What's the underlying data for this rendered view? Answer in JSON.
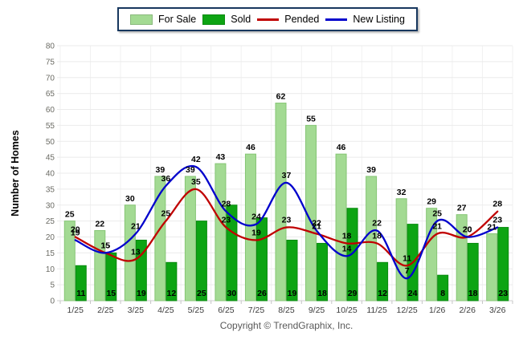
{
  "legend": {
    "items": [
      {
        "label": "For Sale",
        "type": "bar",
        "color": "#A3DA93"
      },
      {
        "label": "Sold",
        "type": "bar",
        "color": "#0DA413"
      },
      {
        "label": "Pended",
        "type": "line",
        "color": "#C00000"
      },
      {
        "label": "New Listing",
        "type": "line",
        "color": "#0000CC"
      }
    ]
  },
  "axes": {
    "y_title": "Number of Homes"
  },
  "footer": {
    "copyright": "Copyright © TrendGraphix, Inc."
  },
  "chart_data": {
    "type": "bar+line combo",
    "title": "",
    "xlabel": "",
    "ylabel": "Number of Homes",
    "ylim": [
      0,
      80
    ],
    "y_step": 5,
    "grid": true,
    "legend_position": "top",
    "categories": [
      "1/25",
      "2/25",
      "3/25",
      "4/25",
      "5/25",
      "6/25",
      "7/25",
      "8/25",
      "9/25",
      "10/25",
      "11/25",
      "12/25",
      "1/26",
      "2/26",
      "3/26"
    ],
    "series": [
      {
        "name": "For Sale",
        "type": "bar",
        "color": "#A3DA93",
        "border": "#85C574",
        "values": [
          25,
          22,
          30,
          39,
          39,
          43,
          46,
          62,
          55,
          46,
          39,
          32,
          29,
          27,
          21
        ]
      },
      {
        "name": "Sold",
        "type": "bar",
        "color": "#0DA413",
        "border": "#0A8A10",
        "values": [
          11,
          15,
          19,
          12,
          25,
          30,
          26,
          19,
          18,
          29,
          12,
          24,
          8,
          18,
          23
        ]
      },
      {
        "name": "Pended",
        "type": "line",
        "color": "#C00000",
        "values": [
          20,
          15,
          13,
          25,
          35,
          23,
          19,
          23,
          21,
          18,
          18,
          11,
          21,
          20,
          28
        ]
      },
      {
        "name": "New Listing",
        "type": "line",
        "color": "#0000CC",
        "values": [
          19,
          15,
          21,
          36,
          42,
          28,
          24,
          37,
          22,
          14,
          22,
          7,
          25,
          20,
          23
        ]
      }
    ]
  }
}
